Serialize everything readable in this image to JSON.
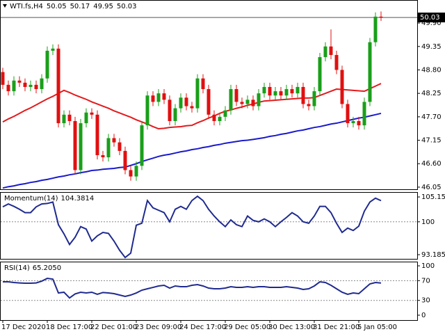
{
  "chart_data": [
    {
      "type": "candlestick",
      "title": "WTI.fs,H4",
      "categories": [
        "17 Dec 2020",
        null,
        null,
        null,
        null,
        null,
        null,
        null,
        "18 Dec 17:00",
        null,
        null,
        null,
        null,
        null,
        null,
        null,
        "22 Dec 01:00",
        null,
        null,
        null,
        null,
        null,
        null,
        null,
        "23 Dec 09:00",
        null,
        null,
        null,
        null,
        null,
        null,
        null,
        "24 Dec 17:00",
        null,
        null,
        null,
        null,
        null,
        null,
        null,
        "29 Dec 05:00",
        null,
        null,
        null,
        null,
        null,
        null,
        null,
        "30 Dec 13:00",
        null,
        null,
        null,
        null,
        null,
        null,
        null,
        "31 Dec 21:00",
        null,
        null,
        null,
        null,
        null,
        null,
        null,
        "5 Jan 05:00",
        null,
        null,
        null,
        null
      ],
      "open": [
        48.75,
        48.45,
        48.3,
        48.55,
        48.5,
        48.4,
        48.45,
        48.35,
        48.6,
        49.25,
        49.3,
        47.55,
        47.75,
        47.6,
        46.45,
        47.55,
        47.8,
        47.75,
        46.8,
        46.75,
        47.2,
        47.1,
        46.9,
        46.45,
        46.3,
        46.55,
        47.5,
        48.2,
        48.05,
        48.25,
        48.1,
        47.6,
        47.9,
        48.15,
        47.95,
        47.9,
        48.6,
        48.35,
        47.75,
        47.6,
        47.7,
        47.85,
        48.35,
        48.05,
        48.0,
        48.1,
        47.95,
        48.25,
        48.4,
        48.2,
        48.3,
        48.2,
        48.35,
        48.25,
        48.4,
        48.0,
        47.95,
        48.3,
        49.1,
        49.35,
        49.15,
        48.8,
        48.0,
        47.55,
        47.6,
        47.5,
        48.05,
        49.45,
        50.05
      ],
      "high": [
        48.85,
        48.55,
        48.65,
        48.65,
        48.6,
        48.55,
        48.55,
        48.7,
        49.35,
        49.4,
        49.4,
        47.85,
        47.85,
        47.7,
        47.65,
        47.9,
        47.9,
        47.85,
        46.9,
        47.3,
        47.3,
        47.2,
        47.0,
        46.55,
        46.65,
        47.6,
        48.3,
        48.3,
        48.35,
        48.35,
        48.2,
        48.0,
        48.25,
        48.25,
        48.05,
        48.7,
        48.7,
        48.45,
        47.85,
        47.8,
        47.95,
        48.45,
        48.45,
        48.15,
        48.2,
        48.2,
        48.35,
        48.5,
        48.5,
        48.4,
        48.4,
        48.45,
        48.45,
        48.5,
        48.5,
        48.1,
        48.4,
        49.2,
        49.45,
        49.75,
        49.25,
        48.9,
        48.1,
        47.7,
        47.7,
        48.15,
        49.55,
        50.15,
        50.17
      ],
      "low": [
        48.35,
        48.2,
        48.2,
        48.4,
        48.3,
        48.3,
        48.25,
        48.25,
        48.5,
        49.15,
        47.45,
        47.45,
        47.5,
        46.35,
        46.35,
        47.45,
        47.65,
        46.7,
        46.65,
        46.65,
        47.0,
        46.8,
        46.35,
        46.2,
        46.2,
        46.45,
        47.4,
        47.95,
        47.95,
        48.0,
        47.5,
        47.5,
        47.8,
        47.85,
        47.8,
        47.8,
        48.25,
        47.65,
        47.5,
        47.5,
        47.6,
        47.75,
        47.95,
        47.9,
        47.9,
        47.85,
        47.85,
        48.15,
        48.1,
        48.1,
        48.1,
        48.1,
        48.15,
        48.15,
        47.9,
        47.85,
        47.85,
        48.2,
        49.0,
        49.05,
        48.7,
        47.9,
        47.45,
        47.45,
        47.4,
        47.4,
        47.95,
        49.35,
        49.95
      ],
      "close": [
        48.45,
        48.3,
        48.55,
        48.5,
        48.4,
        48.45,
        48.35,
        48.6,
        49.25,
        49.3,
        47.55,
        47.75,
        47.6,
        46.45,
        47.55,
        47.8,
        47.75,
        46.8,
        46.75,
        47.2,
        47.1,
        46.9,
        46.45,
        46.3,
        46.55,
        47.5,
        48.2,
        48.05,
        48.25,
        48.1,
        47.6,
        47.9,
        48.15,
        47.95,
        47.9,
        48.6,
        48.35,
        47.75,
        47.6,
        47.7,
        47.85,
        48.35,
        48.05,
        48.0,
        48.1,
        47.95,
        48.25,
        48.4,
        48.2,
        48.3,
        48.2,
        48.35,
        48.25,
        48.4,
        48.0,
        47.95,
        48.3,
        49.1,
        49.35,
        49.15,
        48.8,
        48.0,
        47.55,
        47.6,
        47.5,
        48.05,
        49.45,
        50.05,
        50.03
      ],
      "up_color": "#1a9f1a",
      "down_color": "#e01010",
      "overlays": [
        {
          "color": "#e31a1c",
          "values": [
            47.58,
            47.65,
            47.71,
            47.78,
            47.85,
            47.91,
            47.98,
            48.05,
            48.12,
            48.18,
            48.25,
            48.32,
            48.27,
            48.21,
            48.16,
            48.11,
            48.05,
            48.0,
            47.95,
            47.9,
            47.84,
            47.79,
            47.74,
            47.69,
            47.63,
            47.58,
            47.53,
            47.47,
            47.42,
            47.43,
            47.45,
            47.46,
            47.47,
            47.49,
            47.5,
            47.56,
            47.61,
            47.67,
            47.72,
            47.78,
            47.83,
            47.86,
            47.9,
            47.93,
            47.97,
            48.0,
            48.04,
            48.07,
            48.08,
            48.09,
            48.1,
            48.11,
            48.12,
            48.13,
            48.14,
            48.14,
            48.15,
            48.2,
            48.25,
            48.3,
            48.35,
            48.34,
            48.33,
            48.32,
            48.31,
            48.3,
            48.36,
            48.42,
            48.48
          ]
        },
        {
          "color": "#1a1acc",
          "values": [
            46.03,
            46.06,
            46.08,
            46.11,
            46.13,
            46.16,
            46.18,
            46.21,
            46.23,
            46.26,
            46.29,
            46.31,
            46.34,
            46.36,
            46.39,
            46.41,
            46.44,
            46.45,
            46.47,
            46.48,
            46.49,
            46.51,
            46.52,
            46.56,
            46.6,
            46.65,
            46.69,
            46.73,
            46.77,
            46.8,
            46.82,
            46.85,
            46.88,
            46.9,
            46.93,
            46.95,
            46.98,
            47.0,
            47.03,
            47.05,
            47.08,
            47.1,
            47.12,
            47.14,
            47.15,
            47.17,
            47.19,
            47.21,
            47.24,
            47.26,
            47.29,
            47.31,
            47.34,
            47.37,
            47.39,
            47.42,
            47.45,
            47.47,
            47.5,
            47.53,
            47.55,
            47.58,
            47.61,
            47.64,
            47.67,
            47.69,
            47.72,
            47.75,
            47.78
          ]
        }
      ],
      "ylim": [
        46.0,
        50.44
      ],
      "yticks": [
        {
          "value": 49.9,
          "label": "49.90"
        },
        49.35,
        {
          "value": 48.8,
          "label": "48.80"
        },
        48.25,
        {
          "value": 47.7,
          "label": "47.70"
        },
        47.15,
        {
          "value": 46.6,
          "label": "46.60"
        },
        46.05
      ],
      "last_price": 50.03
    },
    {
      "type": "line",
      "title": "Momentum(14)",
      "color": "#1f2a8f",
      "values": [
        103.1,
        103.7,
        103.2,
        102.6,
        101.9,
        101.9,
        103.1,
        103.7,
        103.8,
        104.1,
        99.4,
        97.5,
        95.3,
        96.8,
        99.0,
        98.5,
        96.0,
        97.1,
        97.8,
        97.6,
        96.0,
        94.1,
        92.6,
        93.5,
        99.3,
        99.7,
        104.4,
        102.9,
        102.4,
        101.9,
        100.0,
        102.6,
        103.2,
        102.6,
        104.4,
        105.3,
        104.4,
        102.6,
        101.2,
        100.0,
        99.0,
        100.4,
        99.4,
        99.0,
        101.2,
        100.3,
        100.0,
        100.6,
        100.0,
        99.0,
        100.0,
        100.9,
        101.9,
        101.2,
        100.0,
        99.7,
        101.2,
        103.2,
        103.2,
        101.9,
        99.7,
        97.8,
        98.7,
        98.2,
        99.1,
        102.2,
        104.1,
        104.9,
        104.3814
      ],
      "ylim": [
        92.32,
        106.17
      ],
      "yticks": [
        105.1555,
        100,
        93.1856
      ]
    },
    {
      "type": "line",
      "title": "RSI(14)",
      "color": "#1f2a8f",
      "values": [
        67.6,
        67.6,
        66.2,
        65.4,
        64.8,
        64.8,
        65.4,
        69.0,
        74.6,
        73.0,
        45.0,
        46.5,
        35.0,
        43.0,
        46.5,
        45.0,
        46.5,
        42.3,
        46.0,
        45.0,
        43.7,
        40.8,
        38.0,
        40.8,
        45.0,
        50.7,
        53.5,
        56.3,
        59.2,
        60.6,
        54.9,
        59.2,
        57.7,
        57.7,
        60.6,
        62.0,
        59.2,
        54.9,
        53.5,
        53.5,
        54.9,
        57.7,
        56.3,
        56.3,
        57.7,
        56.3,
        57.7,
        57.7,
        56.3,
        56.3,
        56.3,
        57.7,
        56.3,
        54.9,
        52.1,
        53.5,
        59.2,
        67.6,
        66.2,
        60.6,
        53.5,
        46.5,
        42.3,
        45.0,
        43.7,
        53.5,
        63.4,
        66.2,
        65.205
      ],
      "value_label": "65.2050",
      "ylim": [
        -9.9,
        108.5
      ],
      "yticks": [
        100,
        70,
        30,
        0
      ]
    }
  ]
}
